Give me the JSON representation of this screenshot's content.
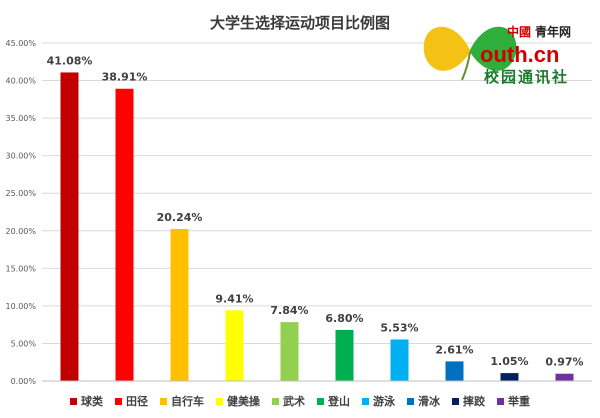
{
  "chart_data": {
    "type": "bar",
    "title": "大学生选择运动项目比例图",
    "xlabel": "",
    "ylabel": "",
    "ylim": [
      0,
      45
    ],
    "yticks": [
      "0.00%",
      "5.00%",
      "10.00%",
      "15.00%",
      "20.00%",
      "25.00%",
      "30.00%",
      "35.00%",
      "40.00%",
      "45.00%"
    ],
    "grid": true,
    "legend_position": "bottom",
    "categories": [
      "球类",
      "田径",
      "自行车",
      "健美操",
      "武术",
      "登山",
      "游泳",
      "滑冰",
      "摔跤",
      "举重"
    ],
    "values": [
      41.08,
      38.91,
      20.24,
      9.41,
      7.84,
      6.8,
      5.53,
      2.61,
      1.05,
      0.97
    ],
    "data_labels": [
      "41.08%",
      "38.91%",
      "20.24%",
      "9.41%",
      "7.84%",
      "6.80%",
      "5.53%",
      "2.61%",
      "1.05%",
      "0.97%"
    ],
    "colors": [
      "#c00000",
      "#ff0000",
      "#ffc000",
      "#ffff00",
      "#92d050",
      "#00b050",
      "#00b0f0",
      "#0070c0",
      "#002060",
      "#7030a0"
    ]
  },
  "logo": {
    "top_red": "中國",
    "top_black": "青年网",
    "main": "outh.cn",
    "sub": "校园通讯社"
  }
}
